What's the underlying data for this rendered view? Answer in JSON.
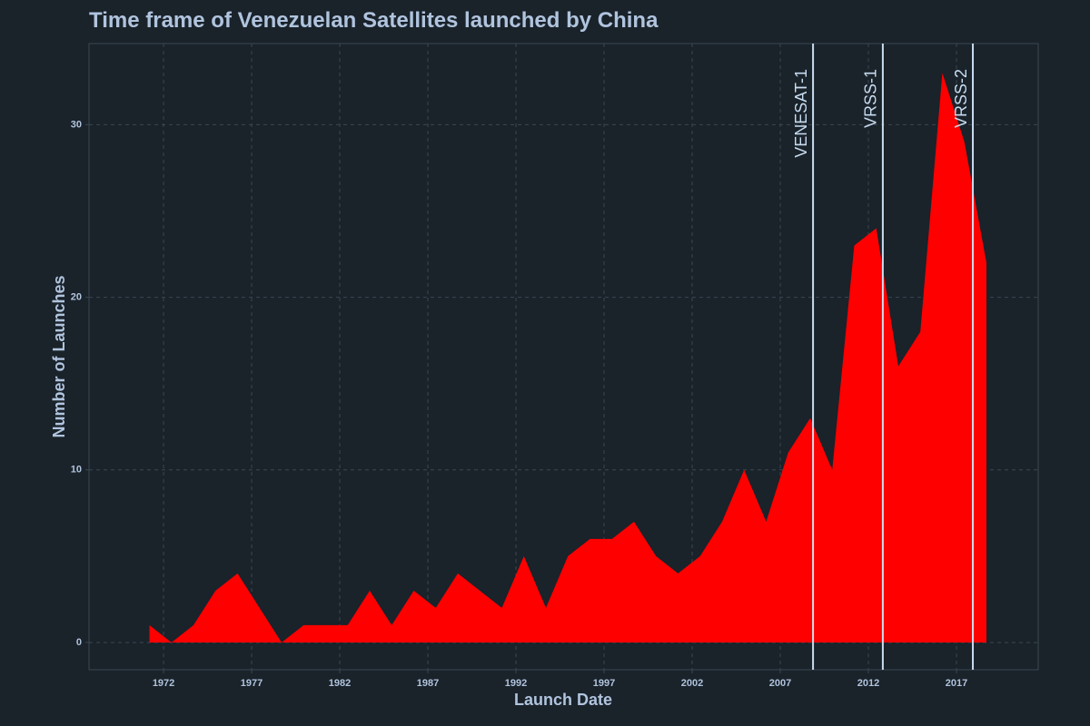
{
  "chart_data": {
    "type": "area",
    "title": "Time frame of Venezuelan Satellites launched by China",
    "x_label": "Launch Date",
    "y_label": "Number of Launches",
    "x": [
      1971.2,
      1972.45,
      1973.7,
      1974.95,
      1976.2,
      1977.45,
      1978.7,
      1979.95,
      1981.2,
      1982.45,
      1983.7,
      1984.95,
      1986.2,
      1987.45,
      1988.7,
      1989.95,
      1991.2,
      1992.45,
      1993.7,
      1994.95,
      1996.2,
      1997.45,
      1998.7,
      1999.95,
      2001.2,
      2002.45,
      2003.7,
      2004.95,
      2006.2,
      2007.45,
      2008.7,
      2009.95,
      2011.2,
      2012.45,
      2013.7,
      2014.95,
      2016.2,
      2017.45,
      2018.7
    ],
    "values": [
      1,
      0,
      1,
      3,
      4,
      2,
      0,
      1,
      1,
      1,
      3,
      1,
      3,
      2,
      4,
      3,
      2,
      5,
      2,
      5,
      6,
      6,
      7,
      5,
      4,
      5,
      7,
      10,
      7,
      11,
      13,
      10,
      23,
      24,
      16,
      18,
      33,
      29,
      22
    ],
    "color": "#ff0000",
    "xlim": [
      1967.77,
      2021.64
    ],
    "ylim": [
      -1.58,
      34.7
    ],
    "xticks": [
      1972,
      1977,
      1982,
      1987,
      1992,
      1997,
      2002,
      2007,
      2012,
      2017
    ],
    "yticks": [
      0,
      10,
      20,
      30
    ],
    "grid": true,
    "annotations": [
      {
        "label": "VENESAT-1",
        "x": 2008.86
      },
      {
        "label": "VRSS-1",
        "x": 2012.82
      },
      {
        "label": "VRSS-2",
        "x": 2017.93
      }
    ],
    "annotation_color": "#c8dcf0"
  }
}
